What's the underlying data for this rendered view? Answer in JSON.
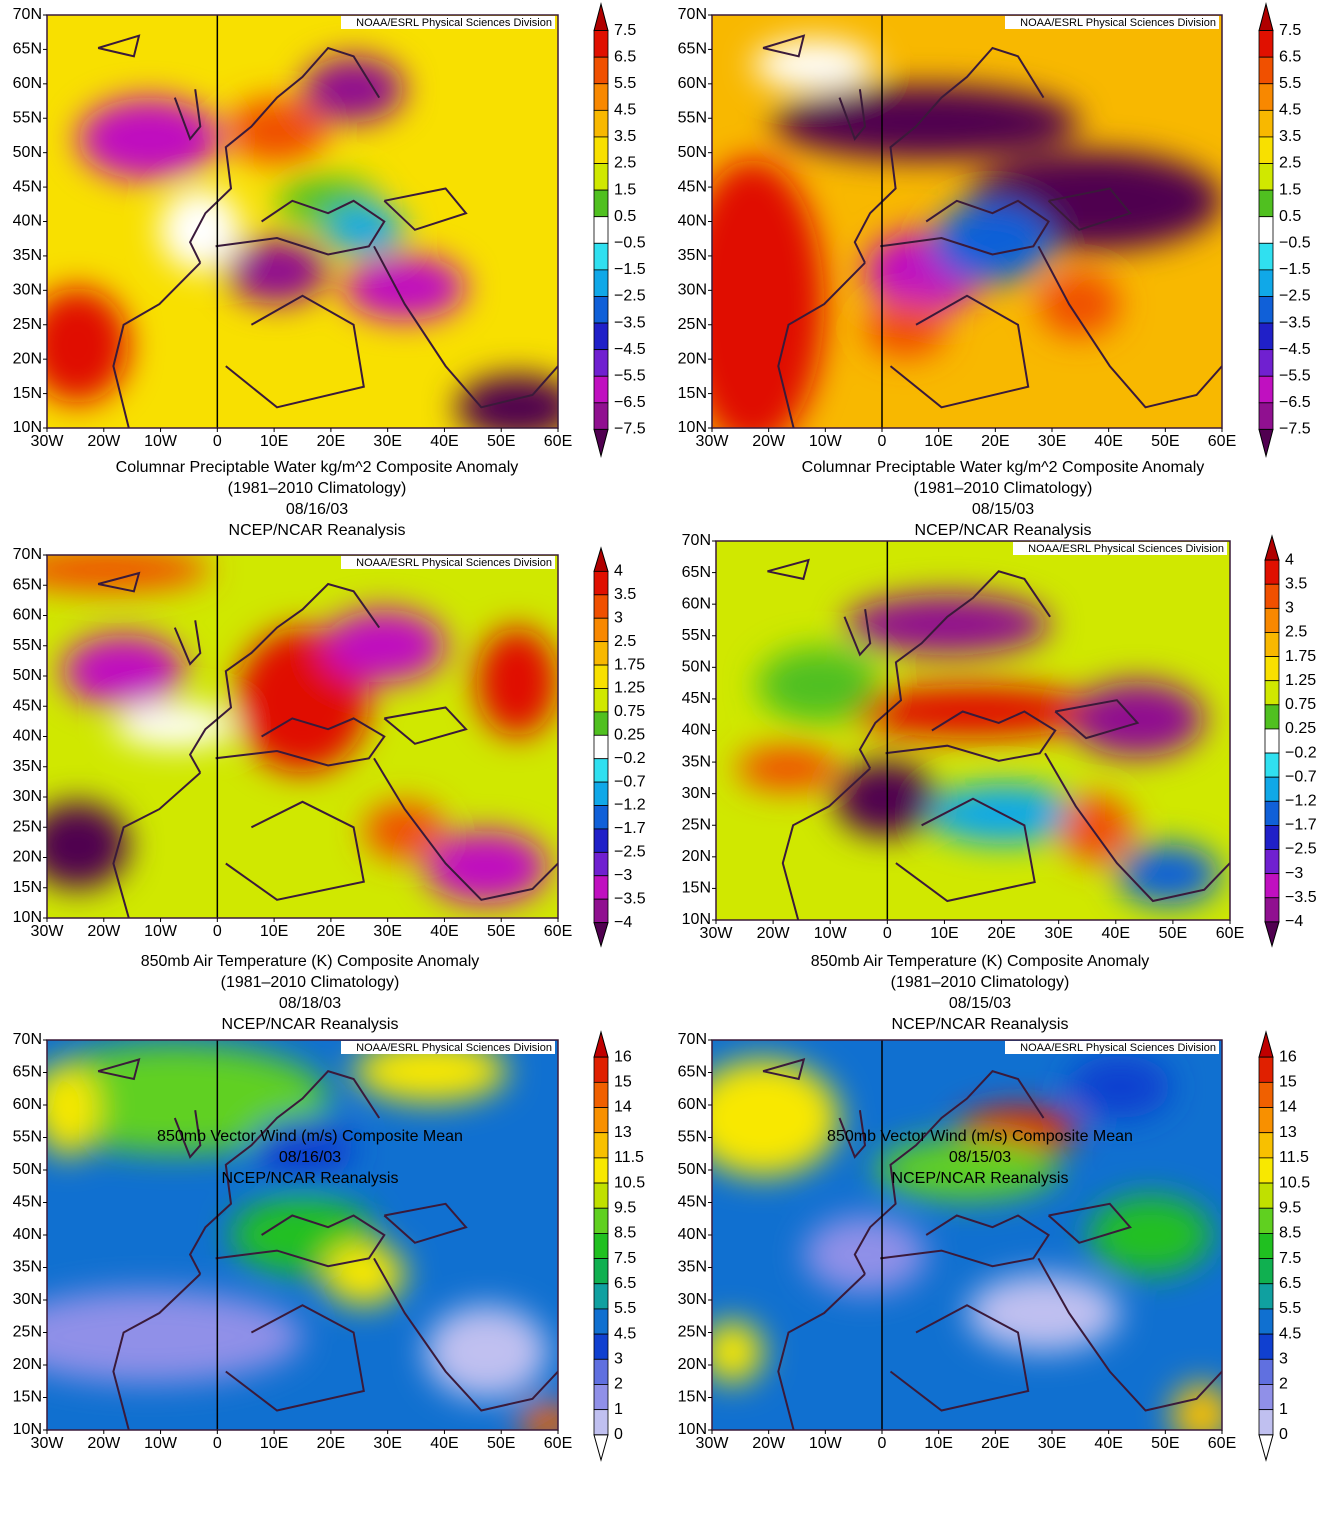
{
  "palettes": {
    "anomaly": [
      "#b00000",
      "#e01000",
      "#f05000",
      "#f88800",
      "#f8b800",
      "#f8e000",
      "#d0e800",
      "#50c020",
      "#ffffff",
      "#30e0f0",
      "#10a8e8",
      "#1060d8",
      "#2020c8",
      "#7020d0",
      "#c010c0",
      "#901090",
      "#500050"
    ],
    "wind": [
      "#c00000",
      "#e02000",
      "#f06000",
      "#f89000",
      "#f8c000",
      "#f8e800",
      "#c0e000",
      "#60d020",
      "#20c020",
      "#10b050",
      "#10a0a0",
      "#1070d0",
      "#1040d0",
      "#6070e0",
      "#9090e8",
      "#c0c0f0",
      "#ffffff"
    ]
  },
  "panels": [
    {
      "palette": "anomaly",
      "credit": "NOAA/ESRL Physical Sciences Division",
      "x_labels": [
        "30W",
        "20W",
        "10W",
        "0",
        "10E",
        "20E",
        "30E",
        "40E",
        "50E",
        "60E"
      ],
      "y_labels": [
        "70N",
        "65N",
        "60N",
        "55N",
        "50N",
        "45N",
        "40N",
        "35N",
        "30N",
        "25N",
        "20N",
        "15N",
        "10N"
      ],
      "colorbar_labels": [
        "7.5",
        "6.5",
        "5.5",
        "4.5",
        "3.5",
        "2.5",
        "1.5",
        "0.5",
        "−0.5",
        "−1.5",
        "−2.5",
        "−3.5",
        "−4.5",
        "−5.5",
        "−6.5",
        "−7.5"
      ],
      "caption": [
        "Columnar Preciptable Water kg/m^2 Composite Anomaly",
        "(1981–2010 Climatology)",
        "08/16/03",
        "NCEP/NCAR Reanalysis"
      ]
    },
    {
      "palette": "anomaly",
      "credit": "NOAA/ESRL Physical Sciences Division",
      "x_labels": [
        "30W",
        "20W",
        "10W",
        "0",
        "10E",
        "20E",
        "30E",
        "40E",
        "50E",
        "60E"
      ],
      "y_labels": [
        "70N",
        "65N",
        "60N",
        "55N",
        "50N",
        "45N",
        "40N",
        "35N",
        "30N",
        "25N",
        "20N",
        "15N",
        "10N"
      ],
      "colorbar_labels": [
        "7.5",
        "6.5",
        "5.5",
        "4.5",
        "3.5",
        "2.5",
        "1.5",
        "0.5",
        "−0.5",
        "−1.5",
        "−2.5",
        "−3.5",
        "−4.5",
        "−5.5",
        "−6.5",
        "−7.5"
      ],
      "caption": [
        "Columnar Preciptable Water kg/m^2 Composite Anomaly",
        "(1981–2010 Climatology)",
        "08/15/03",
        "NCEP/NCAR Reanalysis"
      ]
    },
    {
      "palette": "anomaly",
      "credit": "NOAA/ESRL Physical Sciences Division",
      "x_labels": [
        "30W",
        "20W",
        "10W",
        "0",
        "10E",
        "20E",
        "30E",
        "40E",
        "50E",
        "60E"
      ],
      "y_labels": [
        "70N",
        "65N",
        "60N",
        "55N",
        "50N",
        "45N",
        "40N",
        "35N",
        "30N",
        "25N",
        "20N",
        "15N",
        "10N"
      ],
      "colorbar_labels": [
        "4",
        "3.5",
        "3",
        "2.5",
        "1.75",
        "1.25",
        "0.75",
        "0.25",
        "−0.2",
        "−0.7",
        "−1.2",
        "−1.7",
        "−2.5",
        "−3",
        "−3.5",
        "−4"
      ],
      "caption": [
        "850mb Air Temperature (K) Composite Anomaly",
        "(1981–2010 Climatology)",
        "08/18/03",
        "NCEP/NCAR Reanalysis"
      ]
    },
    {
      "palette": "anomaly",
      "credit": "NOAA/ESRL Physical Sciences Division",
      "x_labels": [
        "30W",
        "20W",
        "10W",
        "0",
        "10E",
        "20E",
        "30E",
        "40E",
        "50E",
        "60E"
      ],
      "y_labels": [
        "70N",
        "65N",
        "60N",
        "55N",
        "50N",
        "45N",
        "40N",
        "35N",
        "30N",
        "25N",
        "20N",
        "15N",
        "10N"
      ],
      "colorbar_labels": [
        "4",
        "3.5",
        "3",
        "2.5",
        "1.75",
        "1.25",
        "0.75",
        "0.25",
        "−0.2",
        "−0.7",
        "−1.2",
        "−1.7",
        "−2.5",
        "−3",
        "−3.5",
        "−4"
      ],
      "caption": [
        "850mb Air Temperature (K) Composite Anomaly",
        "(1981–2010 Climatology)",
        "08/15/03",
        "NCEP/NCAR Reanalysis"
      ]
    },
    {
      "palette": "wind",
      "credit": "NOAA/ESRL Physical Sciences Division",
      "x_labels": [
        "30W",
        "20W",
        "10W",
        "0",
        "10E",
        "20E",
        "30E",
        "40E",
        "50E",
        "60E"
      ],
      "y_labels": [
        "70N",
        "65N",
        "60N",
        "55N",
        "50N",
        "45N",
        "40N",
        "35N",
        "30N",
        "25N",
        "20N",
        "15N",
        "10N"
      ],
      "colorbar_labels": [
        "16",
        "15",
        "14",
        "13",
        "11.5",
        "10.5",
        "9.5",
        "8.5",
        "7.5",
        "6.5",
        "5.5",
        "4.5",
        "3",
        "2",
        "1",
        "0"
      ],
      "caption": [
        "850mb Vector Wind (m/s) Composite Mean",
        "08/16/03",
        "NCEP/NCAR Reanalysis"
      ]
    },
    {
      "palette": "wind",
      "credit": "NOAA/ESRL Physical Sciences Division",
      "x_labels": [
        "30W",
        "20W",
        "10W",
        "0",
        "10E",
        "20E",
        "30E",
        "40E",
        "50E",
        "60E"
      ],
      "y_labels": [
        "70N",
        "65N",
        "60N",
        "55N",
        "50N",
        "45N",
        "40N",
        "35N",
        "30N",
        "25N",
        "20N",
        "15N",
        "10N"
      ],
      "colorbar_labels": [
        "16",
        "15",
        "14",
        "13",
        "11.5",
        "10.5",
        "9.5",
        "8.5",
        "7.5",
        "6.5",
        "5.5",
        "4.5",
        "3",
        "2",
        "1",
        "0"
      ],
      "caption": [
        "850mb Vector Wind (m/s) Composite Mean",
        "08/15/03",
        "NCEP/NCAR Reanalysis"
      ]
    }
  ]
}
